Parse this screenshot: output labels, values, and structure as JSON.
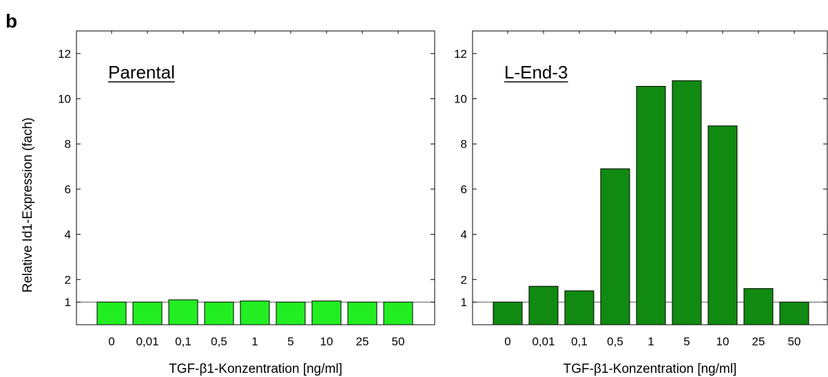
{
  "figure": {
    "letter": "b",
    "ylabel": "Relative Id1-Expression (fach)"
  },
  "chart_data": [
    {
      "type": "bar",
      "panel_label": "Parental",
      "xlabel": "TGF-β1-Konzentration [ng/ml]",
      "ylabel": "Relative Id1-Expression (fach)",
      "categories": [
        "0",
        "0,01",
        "0,1",
        "0,5",
        "1",
        "5",
        "10",
        "25",
        "50"
      ],
      "values": [
        1.0,
        1.0,
        1.1,
        1.0,
        1.05,
        1.0,
        1.05,
        1.0,
        1.0
      ],
      "yticks": [
        1,
        2,
        4,
        6,
        8,
        10,
        12
      ],
      "ylim": [
        0,
        13
      ],
      "reference_line": 1,
      "bar_color": "#22ee22",
      "grid": false
    },
    {
      "type": "bar",
      "panel_label": "L-End-3",
      "xlabel": "TGF-β1-Konzentration [ng/ml]",
      "ylabel": "",
      "categories": [
        "0",
        "0,01",
        "0,1",
        "0,5",
        "1",
        "5",
        "10",
        "25",
        "50"
      ],
      "values": [
        1.0,
        1.7,
        1.5,
        6.9,
        10.55,
        10.8,
        8.8,
        1.6,
        1.0
      ],
      "yticks": [
        1,
        2,
        4,
        6,
        8,
        10,
        12
      ],
      "ylim": [
        0,
        13
      ],
      "reference_line": 1,
      "bar_color": "#118a11",
      "grid": false
    }
  ]
}
